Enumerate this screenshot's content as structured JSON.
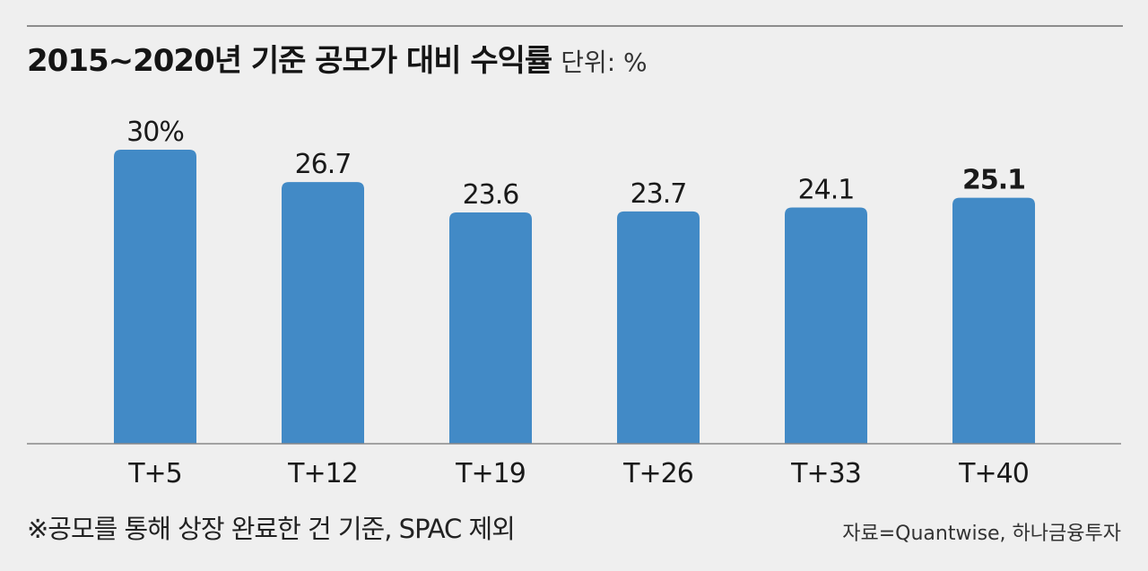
{
  "header": {
    "title": "2015~2020년 기준 공모가 대비 수익률",
    "unit": "단위: %"
  },
  "footer": {
    "note": "※공모를 통해 상장 완료한 건 기준, SPAC 제외",
    "source": "자료=Quantwise, 하나금융투자"
  },
  "colors": {
    "bar": "#428ac6",
    "axis": "#888888",
    "text": "#1a1a1a"
  },
  "chart_data": {
    "type": "bar",
    "title": "2015~2020년 기준 공모가 대비 수익률",
    "unit": "단위: %",
    "categories": [
      "T+5",
      "T+12",
      "T+19",
      "T+26",
      "T+33",
      "T+40"
    ],
    "values": [
      30,
      26.7,
      23.6,
      23.7,
      24.1,
      25.1
    ],
    "data_labels": [
      "30%",
      "26.7",
      "23.6",
      "23.7",
      "24.1",
      "25.1"
    ],
    "highlighted_label_index": 5,
    "ylim": [
      0,
      30
    ],
    "grid": false,
    "legend": "none"
  }
}
